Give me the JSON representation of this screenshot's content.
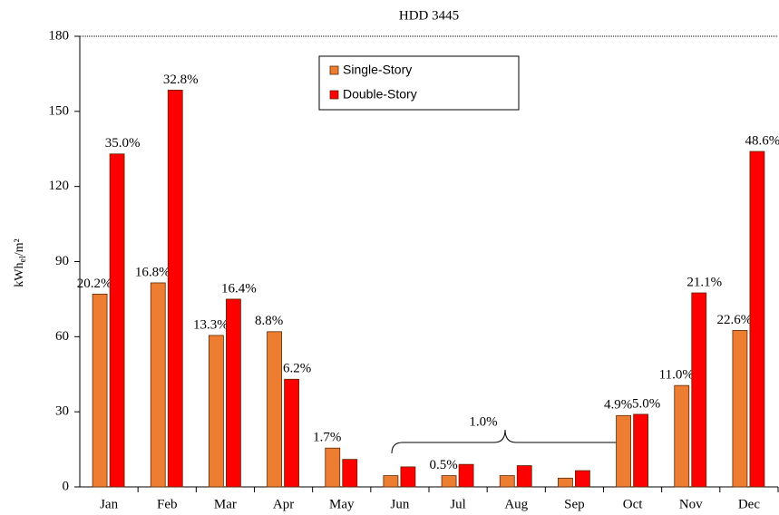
{
  "chart_data": {
    "type": "bar",
    "title": "HDD 3445",
    "ylabel_parts": [
      "kWh",
      "el",
      "/m²"
    ],
    "categories": [
      "Jan",
      "Feb",
      "Mar",
      "Apr",
      "May",
      "Jun",
      "Jul",
      "Aug",
      "Sep",
      "Oct",
      "Nov",
      "Dec"
    ],
    "series": [
      {
        "name": "Single-Story",
        "color": "#ed7d31",
        "values": [
          77,
          81.5,
          60.5,
          62,
          15.5,
          4.5,
          4.5,
          4.5,
          3.5,
          28.5,
          40.5,
          62.5
        ],
        "labels": [
          "20.2%",
          "16.8%",
          "13.3%",
          "8.8%",
          "1.7%",
          null,
          "0.5%",
          null,
          null,
          "4.9%",
          "11.0%",
          "22.6%"
        ]
      },
      {
        "name": "Double-Story",
        "color": "#ff0000",
        "values": [
          133,
          158.5,
          75,
          43,
          11,
          8,
          9,
          8.5,
          6.5,
          29,
          77.5,
          134
        ],
        "labels": [
          "35.0%",
          "32.8%",
          "16.4%",
          "6.2%",
          null,
          null,
          null,
          null,
          null,
          "5.0%",
          "21.1%",
          "48.6%"
        ]
      }
    ],
    "annotation": "1.0%",
    "ylim": [
      0,
      180
    ],
    "yticks": [
      0,
      30,
      60,
      90,
      120,
      150,
      180
    ],
    "legend": "top-center"
  }
}
